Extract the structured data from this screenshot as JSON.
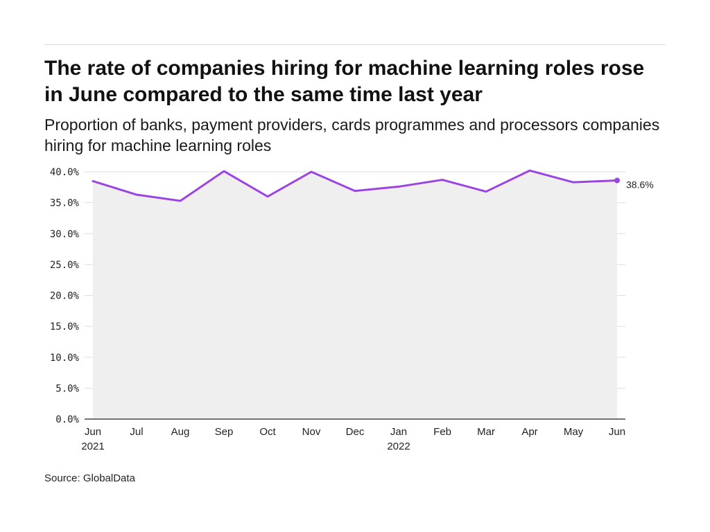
{
  "header": {
    "title": "The rate of companies hiring for machine learning roles rose in June compared to the same time last year",
    "subtitle": "Proportion of banks, payment providers, cards programmes and processors companies hiring for machine learning roles"
  },
  "footer": {
    "source": "Source: GlobalData"
  },
  "chart_data": {
    "type": "area",
    "title": "The rate of companies hiring for machine learning roles rose in June compared to the same time last year",
    "subtitle": "Proportion of banks, payment providers, cards programmes and processors companies hiring for machine learning roles",
    "xlabel": "",
    "ylabel": "",
    "categories": [
      "2021-06",
      "2021-07",
      "2021-08",
      "2021-09",
      "2021-10",
      "2021-11",
      "2021-12",
      "2022-01",
      "2022-02",
      "2022-03",
      "2022-04",
      "2022-05",
      "2022-06"
    ],
    "x_tick_labels": [
      {
        "month": "Jun",
        "year": "2021"
      },
      {
        "month": "Jul",
        "year": ""
      },
      {
        "month": "Aug",
        "year": ""
      },
      {
        "month": "Sep",
        "year": ""
      },
      {
        "month": "Oct",
        "year": ""
      },
      {
        "month": "Nov",
        "year": ""
      },
      {
        "month": "Dec",
        "year": ""
      },
      {
        "month": "Jan",
        "year": "2022"
      },
      {
        "month": "Feb",
        "year": ""
      },
      {
        "month": "Mar",
        "year": ""
      },
      {
        "month": "Apr",
        "year": ""
      },
      {
        "month": "May",
        "year": ""
      },
      {
        "month": "Jun",
        "year": ""
      }
    ],
    "y_tick_labels": [
      "0.0%",
      "5.0%",
      "10.0%",
      "15.0%",
      "20.0%",
      "25.0%",
      "30.0%",
      "35.0%",
      "40.0%"
    ],
    "y_ticks": [
      0,
      5,
      10,
      15,
      20,
      25,
      30,
      35,
      40
    ],
    "ylim": [
      0,
      40
    ],
    "series": [
      {
        "values": [
          38.5,
          36.3,
          35.3,
          40.1,
          36.0,
          40.0,
          36.9,
          37.6,
          38.7,
          36.8,
          40.2,
          38.3,
          38.6
        ]
      }
    ],
    "end_label": "38.6%",
    "grid": true,
    "legend": "none",
    "line_color": "#9b45e0",
    "area_color": "#efefef",
    "grid_color": "#dddddd"
  }
}
